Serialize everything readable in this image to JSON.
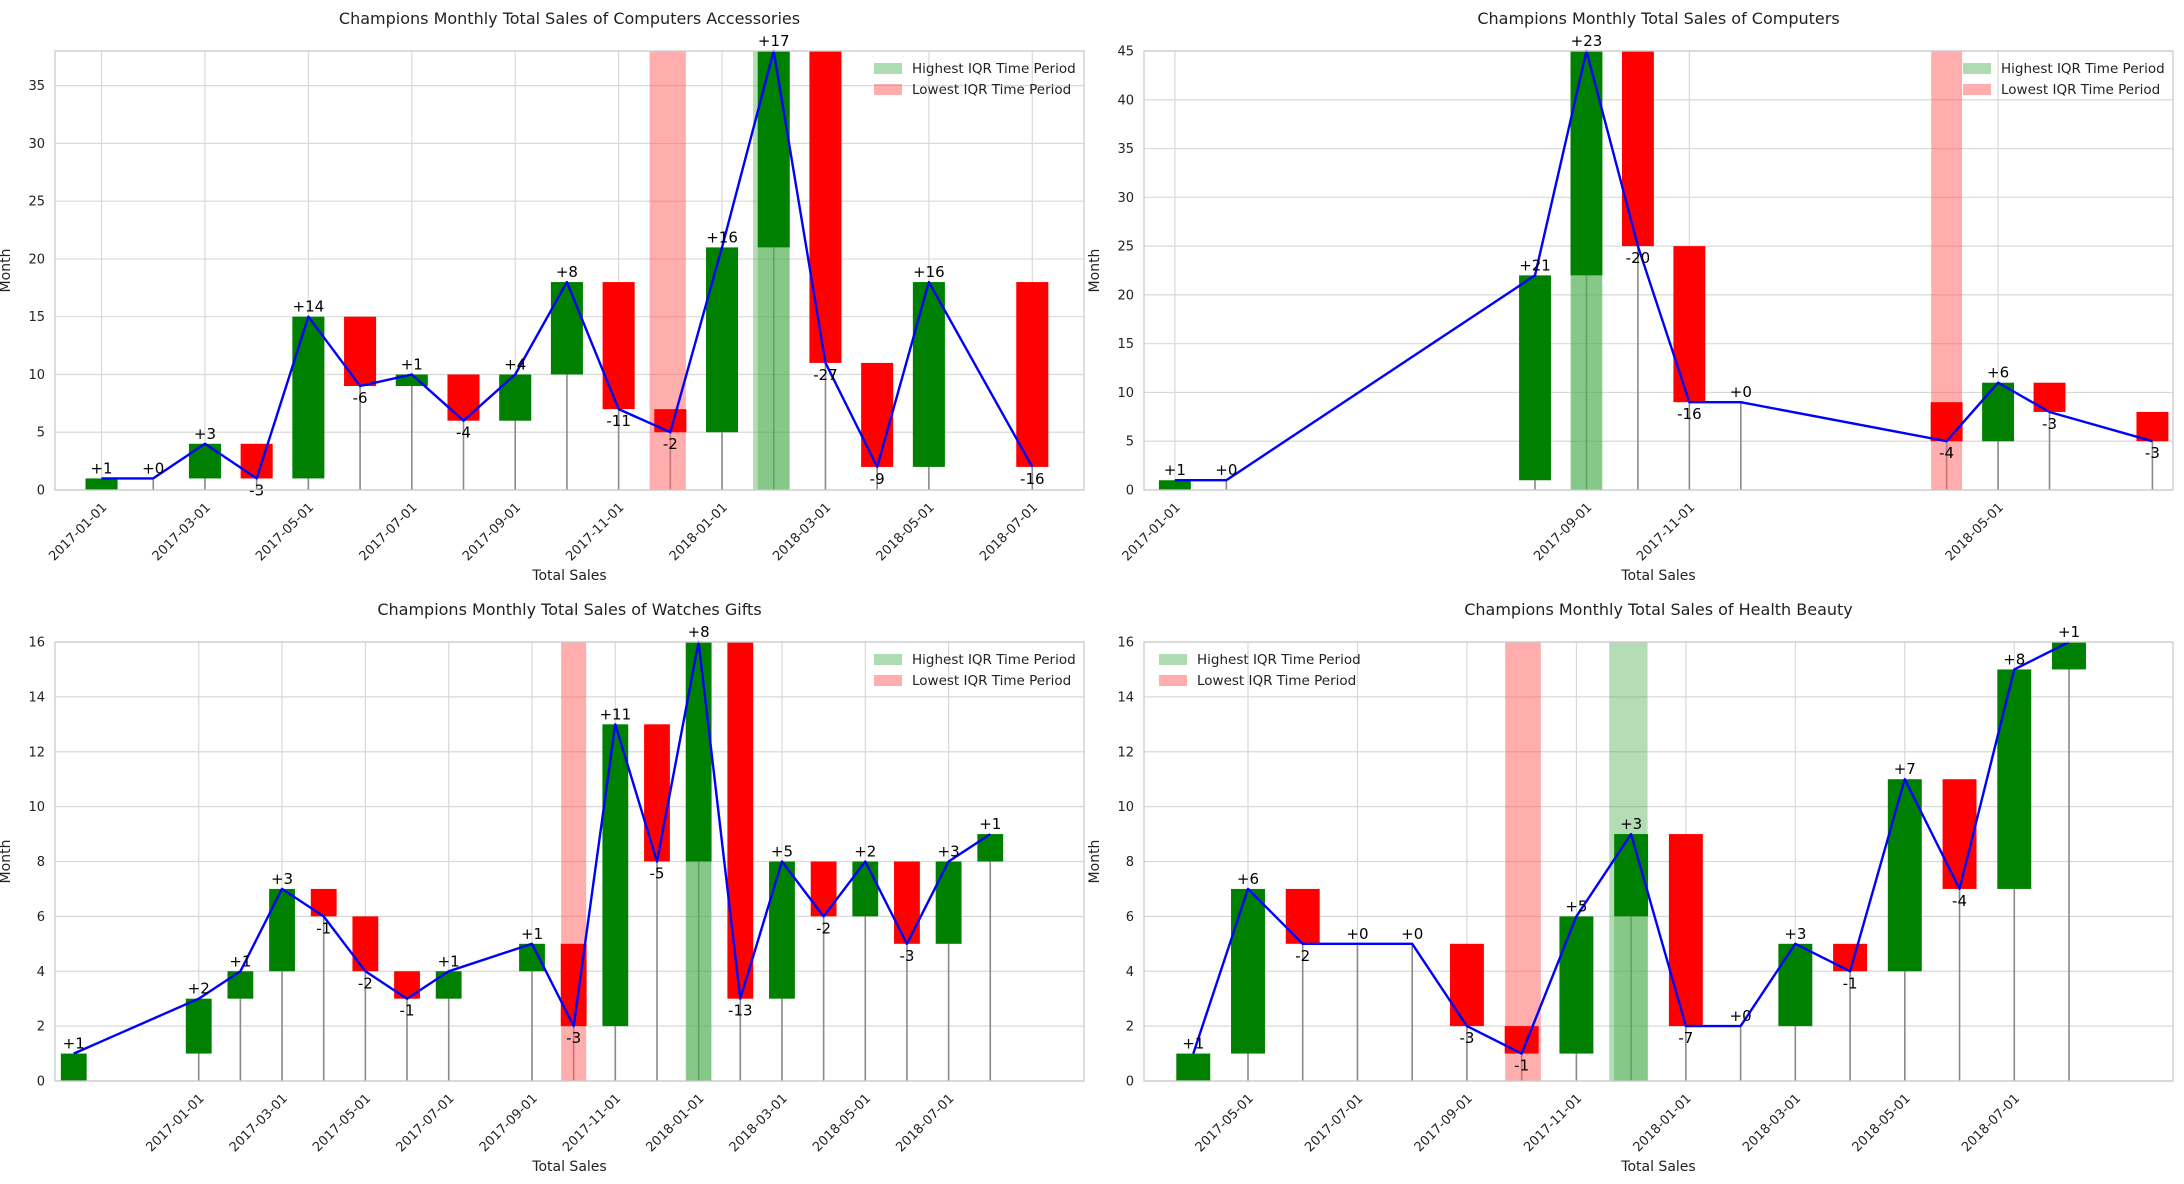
{
  "colors": {
    "increase": "#008000",
    "decrease": "#ff0000",
    "line": "#0000ff",
    "highlight_high": "#4caf50",
    "highlight_low": "#ff5c5c",
    "grid": "#d9d9d9",
    "frame": "#cccccc"
  },
  "chart_data": [
    {
      "type": "bar",
      "subtype": "waterfall",
      "title": "Champions Monthly Total Sales of Computers Accessories",
      "xlabel": "Total Sales",
      "ylabel": "Month",
      "ylim": [
        0,
        38
      ],
      "yticks": [
        0,
        5,
        10,
        15,
        20,
        25,
        30,
        35
      ],
      "xrange": [
        -0.9,
        19.0
      ],
      "xticks": [
        {
          "pos": 0,
          "label": "2017-01-01"
        },
        {
          "pos": 2,
          "label": "2017-03-01"
        },
        {
          "pos": 4,
          "label": "2017-05-01"
        },
        {
          "pos": 6,
          "label": "2017-07-01"
        },
        {
          "pos": 8,
          "label": "2017-09-01"
        },
        {
          "pos": 10,
          "label": "2017-11-01"
        },
        {
          "pos": 12,
          "label": "2018-01-01"
        },
        {
          "pos": 14,
          "label": "2018-03-01"
        },
        {
          "pos": 16,
          "label": "2018-05-01"
        },
        {
          "pos": 18,
          "label": "2018-07-01"
        }
      ],
      "bar_width": 0.62,
      "highest_iqr": [
        12.6,
        13.3
      ],
      "lowest_iqr": [
        10.6,
        11.3
      ],
      "legend": {
        "position": "upper right",
        "high_label": "Highest IQR Time Period",
        "low_label": "Lowest IQR Time Period"
      },
      "points": [
        {
          "x": 0,
          "prev": 0,
          "value": 1,
          "label": "+1"
        },
        {
          "x": 1,
          "prev": 1,
          "value": 1,
          "label": "+0"
        },
        {
          "x": 2,
          "prev": 1,
          "value": 4,
          "label": "+3"
        },
        {
          "x": 3,
          "prev": 4,
          "value": 1,
          "label": "-3"
        },
        {
          "x": 4,
          "prev": 1,
          "value": 15,
          "label": "+14"
        },
        {
          "x": 5,
          "prev": 15,
          "value": 9,
          "label": "-6"
        },
        {
          "x": 6,
          "prev": 9,
          "value": 10,
          "label": "+1"
        },
        {
          "x": 7,
          "prev": 10,
          "value": 6,
          "label": "-4"
        },
        {
          "x": 8,
          "prev": 6,
          "value": 10,
          "label": "+4"
        },
        {
          "x": 9,
          "prev": 10,
          "value": 18,
          "label": "+8"
        },
        {
          "x": 10,
          "prev": 18,
          "value": 7,
          "label": "-11"
        },
        {
          "x": 11,
          "prev": 7,
          "value": 5,
          "label": "-2"
        },
        {
          "x": 12,
          "prev": 5,
          "value": 21,
          "label": "+16"
        },
        {
          "x": 13,
          "prev": 21,
          "value": 38,
          "label": "+17"
        },
        {
          "x": 14,
          "prev": 38,
          "value": 11,
          "label": "-27"
        },
        {
          "x": 15,
          "prev": 11,
          "value": 2,
          "label": "-9"
        },
        {
          "x": 16,
          "prev": 2,
          "value": 18,
          "label": "+16"
        },
        {
          "x": 18,
          "prev": 18,
          "value": 2,
          "label": "-16"
        }
      ]
    },
    {
      "type": "bar",
      "subtype": "waterfall",
      "title": "Champions Monthly Total Sales of Computers",
      "xlabel": "Total Sales",
      "ylabel": "Month",
      "ylim": [
        0,
        45
      ],
      "yticks": [
        0,
        5,
        10,
        15,
        20,
        25,
        30,
        35,
        40,
        45
      ],
      "xrange": [
        -0.6,
        19.4
      ],
      "xticks": [
        {
          "pos": 0,
          "label": "2017-01-01"
        },
        {
          "pos": 8,
          "label": "2017-09-01"
        },
        {
          "pos": 10,
          "label": "2017-11-01"
        },
        {
          "pos": 16,
          "label": "2018-05-01"
        }
      ],
      "bar_width": 0.62,
      "highest_iqr": [
        7.7,
        8.3
      ],
      "lowest_iqr": [
        14.7,
        15.3
      ],
      "legend": {
        "position": "upper right",
        "high_label": "Highest IQR Time Period",
        "low_label": "Lowest IQR Time Period"
      },
      "points": [
        {
          "x": 0,
          "prev": 0,
          "value": 1,
          "label": "+1"
        },
        {
          "x": 1,
          "prev": 1,
          "value": 1,
          "label": "+0"
        },
        {
          "x": 7,
          "prev": 1,
          "value": 22,
          "label": "+21"
        },
        {
          "x": 8,
          "prev": 22,
          "value": 45,
          "label": "+23"
        },
        {
          "x": 9,
          "prev": 45,
          "value": 25,
          "label": "-20"
        },
        {
          "x": 10,
          "prev": 25,
          "value": 9,
          "label": "-16"
        },
        {
          "x": 11,
          "prev": 9,
          "value": 9,
          "label": "+0"
        },
        {
          "x": 15,
          "prev": 9,
          "value": 5,
          "label": "-4"
        },
        {
          "x": 16,
          "prev": 5,
          "value": 11,
          "label": "+6"
        },
        {
          "x": 17,
          "prev": 11,
          "value": 8,
          "label": "-3"
        },
        {
          "x": 19,
          "prev": 8,
          "value": 5,
          "label": "-3"
        }
      ]
    },
    {
      "type": "bar",
      "subtype": "waterfall",
      "title": "Champions Monthly Total Sales of Watches Gifts",
      "xlabel": "Total Sales",
      "ylabel": "Month",
      "ylim": [
        0,
        16
      ],
      "yticks": [
        0,
        2,
        4,
        6,
        8,
        10,
        12,
        14,
        16
      ],
      "xrange": [
        -3.45,
        21.25
      ],
      "xticks": [
        {
          "pos": 0,
          "label": "2017-01-01"
        },
        {
          "pos": 2,
          "label": "2017-03-01"
        },
        {
          "pos": 4,
          "label": "2017-05-01"
        },
        {
          "pos": 6,
          "label": "2017-07-01"
        },
        {
          "pos": 8,
          "label": "2017-09-01"
        },
        {
          "pos": 10,
          "label": "2017-11-01"
        },
        {
          "pos": 12,
          "label": "2018-01-01"
        },
        {
          "pos": 14,
          "label": "2018-03-01"
        },
        {
          "pos": 16,
          "label": "2018-05-01"
        },
        {
          "pos": 18,
          "label": "2018-07-01"
        }
      ],
      "bar_width": 0.62,
      "highest_iqr": [
        11.7,
        12.3
      ],
      "lowest_iqr": [
        8.7,
        9.3
      ],
      "legend": {
        "position": "upper right",
        "high_label": "Highest IQR Time Period",
        "low_label": "Lowest IQR Time Period"
      },
      "points": [
        {
          "x": -3,
          "prev": 0,
          "value": 1,
          "label": "+1"
        },
        {
          "x": 0,
          "prev": 1,
          "value": 3,
          "label": "+2"
        },
        {
          "x": 1,
          "prev": 3,
          "value": 4,
          "label": "+1"
        },
        {
          "x": 2,
          "prev": 4,
          "value": 7,
          "label": "+3"
        },
        {
          "x": 3,
          "prev": 7,
          "value": 6,
          "label": "-1"
        },
        {
          "x": 4,
          "prev": 6,
          "value": 4,
          "label": "-2"
        },
        {
          "x": 5,
          "prev": 4,
          "value": 3,
          "label": "-1"
        },
        {
          "x": 6,
          "prev": 3,
          "value": 4,
          "label": "+1"
        },
        {
          "x": 8,
          "prev": 4,
          "value": 5,
          "label": "+1"
        },
        {
          "x": 9,
          "prev": 5,
          "value": 2,
          "label": "-3"
        },
        {
          "x": 10,
          "prev": 2,
          "value": 13,
          "label": "+11"
        },
        {
          "x": 11,
          "prev": 13,
          "value": 8,
          "label": "-5"
        },
        {
          "x": 12,
          "prev": 8,
          "value": 16,
          "label": "+8"
        },
        {
          "x": 13,
          "prev": 16,
          "value": 3,
          "label": "-13"
        },
        {
          "x": 14,
          "prev": 3,
          "value": 8,
          "label": "+5"
        },
        {
          "x": 15,
          "prev": 8,
          "value": 6,
          "label": "-2"
        },
        {
          "x": 16,
          "prev": 6,
          "value": 8,
          "label": "+2"
        },
        {
          "x": 17,
          "prev": 8,
          "value": 5,
          "label": "-3"
        },
        {
          "x": 18,
          "prev": 5,
          "value": 8,
          "label": "+3"
        },
        {
          "x": 19,
          "prev": 8,
          "value": 9,
          "label": "+1"
        }
      ]
    },
    {
      "type": "bar",
      "subtype": "waterfall",
      "title": "Champions Monthly Total Sales of Health Beauty",
      "xlabel": "Total Sales",
      "ylabel": "Month",
      "ylim": [
        0,
        16
      ],
      "yticks": [
        0,
        2,
        4,
        6,
        8,
        10,
        12,
        14,
        16
      ],
      "xrange": [
        2.1,
        20.9
      ],
      "xticks": [
        {
          "pos": 4,
          "label": "2017-05-01"
        },
        {
          "pos": 6,
          "label": "2017-07-01"
        },
        {
          "pos": 8,
          "label": "2017-09-01"
        },
        {
          "pos": 10,
          "label": "2017-11-01"
        },
        {
          "pos": 12,
          "label": "2018-01-01"
        },
        {
          "pos": 14,
          "label": "2018-03-01"
        },
        {
          "pos": 16,
          "label": "2018-05-01"
        },
        {
          "pos": 18,
          "label": "2018-07-01"
        }
      ],
      "bar_width": 0.62,
      "highest_iqr": [
        10.6,
        11.3
      ],
      "lowest_iqr": [
        8.7,
        9.35
      ],
      "legend": {
        "position": "upper left",
        "high_label": "Highest IQR Time Period",
        "low_label": "Lowest IQR Time Period"
      },
      "points": [
        {
          "x": 3,
          "prev": 0,
          "value": 1,
          "label": "+1"
        },
        {
          "x": 4,
          "prev": 1,
          "value": 7,
          "label": "+6"
        },
        {
          "x": 5,
          "prev": 7,
          "value": 5,
          "label": "-2"
        },
        {
          "x": 6,
          "prev": 5,
          "value": 5,
          "label": "+0"
        },
        {
          "x": 7,
          "prev": 5,
          "value": 5,
          "label": "+0"
        },
        {
          "x": 8,
          "prev": 5,
          "value": 2,
          "label": "-3"
        },
        {
          "x": 9,
          "prev": 2,
          "value": 1,
          "label": "-1"
        },
        {
          "x": 10,
          "prev": 1,
          "value": 6,
          "label": "+5"
        },
        {
          "x": 11,
          "prev": 6,
          "value": 9,
          "label": "+3"
        },
        {
          "x": 12,
          "prev": 9,
          "value": 2,
          "label": "-7"
        },
        {
          "x": 13,
          "prev": 2,
          "value": 2,
          "label": "+0"
        },
        {
          "x": 14,
          "prev": 2,
          "value": 5,
          "label": "+3"
        },
        {
          "x": 15,
          "prev": 5,
          "value": 4,
          "label": "-1"
        },
        {
          "x": 16,
          "prev": 4,
          "value": 11,
          "label": "+7"
        },
        {
          "x": 17,
          "prev": 11,
          "value": 7,
          "label": "-4"
        },
        {
          "x": 18,
          "prev": 7,
          "value": 15,
          "label": "+8"
        },
        {
          "x": 19,
          "prev": 15,
          "value": 16,
          "label": "+1"
        }
      ]
    }
  ]
}
